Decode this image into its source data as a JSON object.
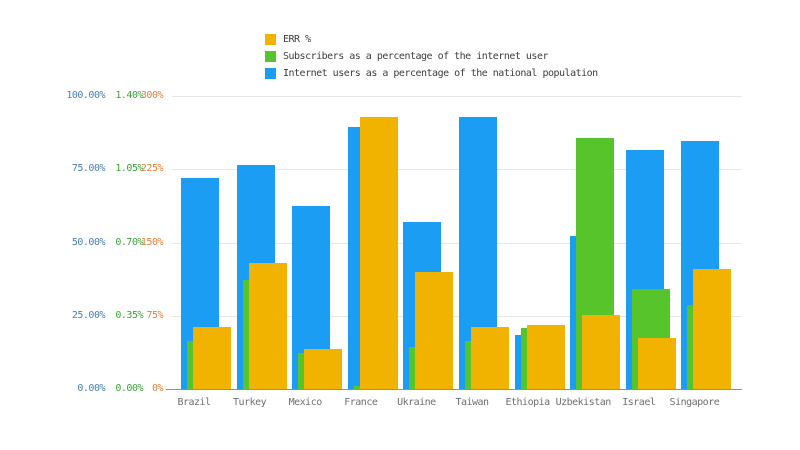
{
  "chart_data": {
    "type": "bar",
    "title": "",
    "xlabel": "",
    "ylabel": "",
    "grid": true,
    "legend_position": "top",
    "categories": [
      "Brazil",
      "Turkey",
      "Mexico",
      "France",
      "Ukraine",
      "Taiwan",
      "Ethiopia",
      "Uzbekistan",
      "Israel",
      "Singapore"
    ],
    "series": [
      {
        "name": "ERR %",
        "color": "#F2B200",
        "axis": "orange",
        "values": [
          63,
          129,
          41,
          279,
          120,
          63,
          66,
          76,
          52,
          123
        ]
      },
      {
        "name": "Subscribers as a percentage of the internet user",
        "color": "#58C42C",
        "axis": "green",
        "values": [
          0.23,
          0.52,
          0.17,
          0.016,
          0.2,
          0.23,
          0.29,
          1.2,
          0.48,
          0.4
        ]
      },
      {
        "name": "Internet users as a percentage of the national population",
        "color": "#1A9DF2",
        "axis": "blue",
        "values": [
          71.9,
          76.5,
          62.5,
          89.3,
          56.9,
          92.9,
          18.3,
          52.3,
          81.5,
          84.7
        ]
      }
    ],
    "axes": [
      {
        "id": "blue",
        "max": 100,
        "tick_color": "#4A80B4",
        "ticks": [
          "100.00%",
          "75.00%",
          "50.00%",
          "25.00%",
          "0.00%"
        ]
      },
      {
        "id": "green",
        "max": 1.4,
        "tick_color": "#3CA43C",
        "ticks": [
          "1.40%",
          "1.05%",
          "0.70%",
          "0.35%",
          "0.00%"
        ]
      },
      {
        "id": "orange",
        "max": 300,
        "tick_color": "#E5803B",
        "ticks": [
          "300%",
          "225%",
          "150%",
          "75%",
          "0%"
        ]
      }
    ]
  }
}
